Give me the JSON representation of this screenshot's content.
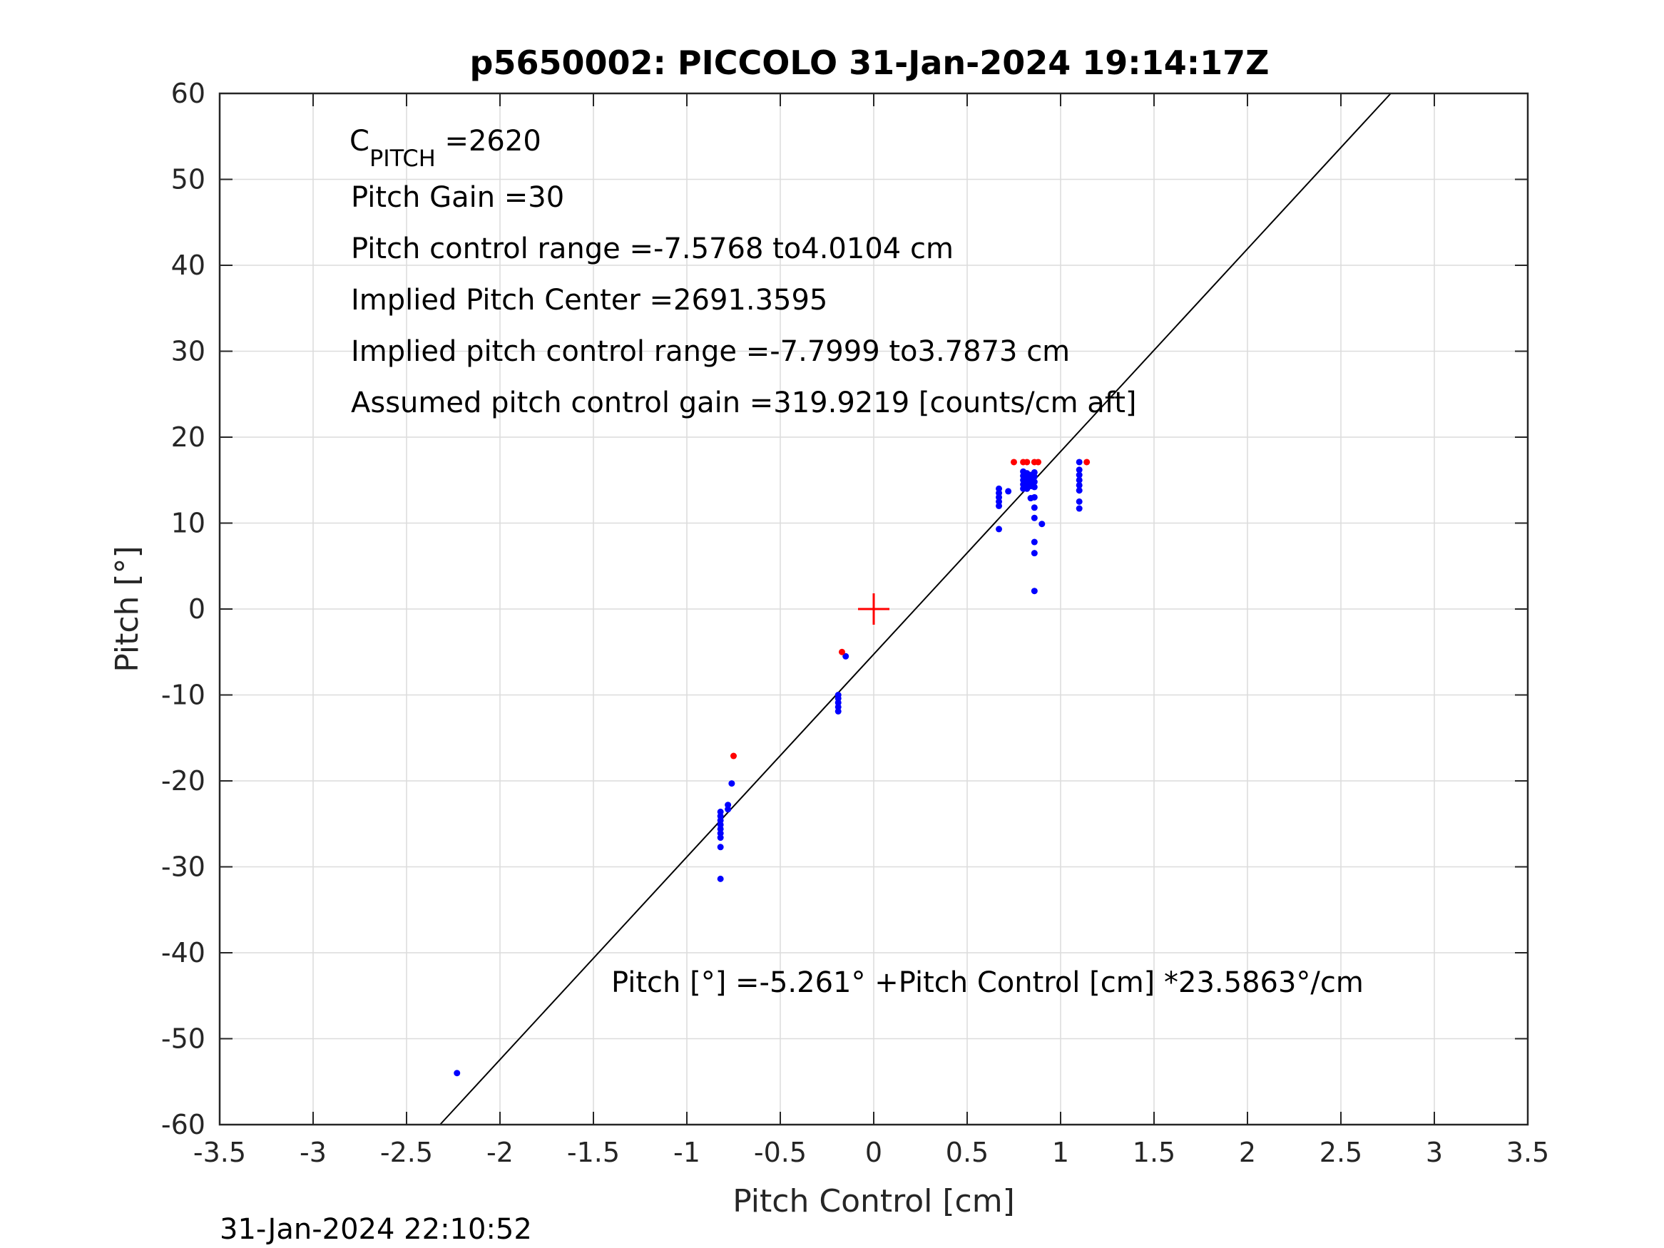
{
  "chart_data": {
    "type": "scatter",
    "title": "p5650002: PICCOLO 31-Jan-2024 19:14:17Z",
    "xlabel": "Pitch Control [cm]",
    "ylabel": "Pitch [°]",
    "xlim": [
      -3.5,
      3.5
    ],
    "ylim": [
      -60,
      60
    ],
    "xticks": [
      -3.5,
      -3,
      -2.5,
      -2,
      -1.5,
      -1,
      -0.5,
      0,
      0.5,
      1,
      1.5,
      2,
      2.5,
      3,
      3.5
    ],
    "xtick_labels": [
      "-3.5",
      "-3",
      "-2.5",
      "-2",
      "-1.5",
      "-1",
      "-0.5",
      "0",
      "0.5",
      "1",
      "1.5",
      "2",
      "2.5",
      "3",
      "3.5"
    ],
    "yticks": [
      -60,
      -50,
      -40,
      -30,
      -20,
      -10,
      0,
      10,
      20,
      30,
      40,
      50,
      60
    ],
    "ytick_labels": [
      "-60",
      "-50",
      "-40",
      "-30",
      "-20",
      "-10",
      "0",
      "10",
      "20",
      "30",
      "40",
      "50",
      "60"
    ],
    "grid": true,
    "series": [
      {
        "color": "#0000ff",
        "marker": "dot",
        "points": [
          [
            -2.23,
            -54.0
          ],
          [
            -0.82,
            -31.4
          ],
          [
            -0.82,
            -27.7
          ],
          [
            -0.82,
            -26.6
          ],
          [
            -0.82,
            -26.1
          ],
          [
            -0.82,
            -25.6
          ],
          [
            -0.82,
            -25.1
          ],
          [
            -0.82,
            -24.6
          ],
          [
            -0.82,
            -24.1
          ],
          [
            -0.82,
            -23.6
          ],
          [
            -0.78,
            -23.3
          ],
          [
            -0.78,
            -22.8
          ],
          [
            -0.76,
            -20.3
          ],
          [
            -0.19,
            -11.9
          ],
          [
            -0.19,
            -11.4
          ],
          [
            -0.19,
            -10.9
          ],
          [
            -0.19,
            -10.4
          ],
          [
            -0.19,
            -10.0
          ],
          [
            -0.15,
            -5.5
          ],
          [
            0.67,
            9.3
          ],
          [
            0.67,
            12.0
          ],
          [
            0.67,
            12.5
          ],
          [
            0.67,
            13.0
          ],
          [
            0.67,
            13.5
          ],
          [
            0.67,
            14.0
          ],
          [
            0.72,
            13.7
          ],
          [
            0.8,
            14.0
          ],
          [
            0.8,
            14.5
          ],
          [
            0.8,
            15.0
          ],
          [
            0.8,
            15.5
          ],
          [
            0.8,
            16.0
          ],
          [
            0.82,
            14.0
          ],
          [
            0.82,
            14.6
          ],
          [
            0.82,
            15.2
          ],
          [
            0.82,
            15.8
          ],
          [
            0.84,
            12.9
          ],
          [
            0.84,
            14.3
          ],
          [
            0.84,
            15.0
          ],
          [
            0.84,
            15.6
          ],
          [
            0.86,
            2.1
          ],
          [
            0.86,
            6.5
          ],
          [
            0.86,
            7.8
          ],
          [
            0.86,
            10.6
          ],
          [
            0.86,
            11.8
          ],
          [
            0.86,
            13.0
          ],
          [
            0.86,
            14.2
          ],
          [
            0.86,
            14.8
          ],
          [
            0.86,
            15.4
          ],
          [
            0.86,
            15.9
          ],
          [
            0.9,
            9.9
          ],
          [
            1.1,
            11.7
          ],
          [
            1.1,
            12.5
          ],
          [
            1.1,
            13.8
          ],
          [
            1.1,
            14.4
          ],
          [
            1.1,
            15.0
          ],
          [
            1.1,
            15.6
          ],
          [
            1.1,
            16.2
          ],
          [
            1.1,
            17.1
          ]
        ]
      },
      {
        "color": "#ff0000",
        "marker": "dot",
        "points": [
          [
            -0.75,
            -17.1
          ],
          [
            -0.17,
            -5.0
          ],
          [
            0.75,
            17.1
          ],
          [
            0.8,
            17.1
          ],
          [
            0.82,
            17.1
          ],
          [
            0.86,
            17.1
          ],
          [
            0.88,
            17.1
          ],
          [
            1.14,
            17.1
          ]
        ]
      }
    ],
    "center_marker": {
      "x": 0,
      "y": 0,
      "color": "#ff0000",
      "symbol": "+"
    },
    "fit_line": {
      "intercept": -5.261,
      "slope": 23.5863,
      "color": "#000000"
    },
    "annotations": {
      "c_pitch_main": "C",
      "c_pitch_sub": "PITCH",
      "c_pitch_value": " =2620",
      "pitch_gain": "Pitch Gain =30",
      "control_range": "Pitch control range =-7.5768 to4.0104 cm",
      "implied_center": "Implied Pitch Center =2691.3595",
      "implied_range": "Implied pitch control range =-7.7999 to3.7873 cm",
      "assumed_gain": "Assumed pitch control gain =319.9219 [counts/cm aft]",
      "fit_equation": "Pitch [°] =-5.261° +Pitch Control [cm] *23.5863°/cm"
    }
  },
  "footer": {
    "timestamp": "31-Jan-2024 22:10:52"
  }
}
